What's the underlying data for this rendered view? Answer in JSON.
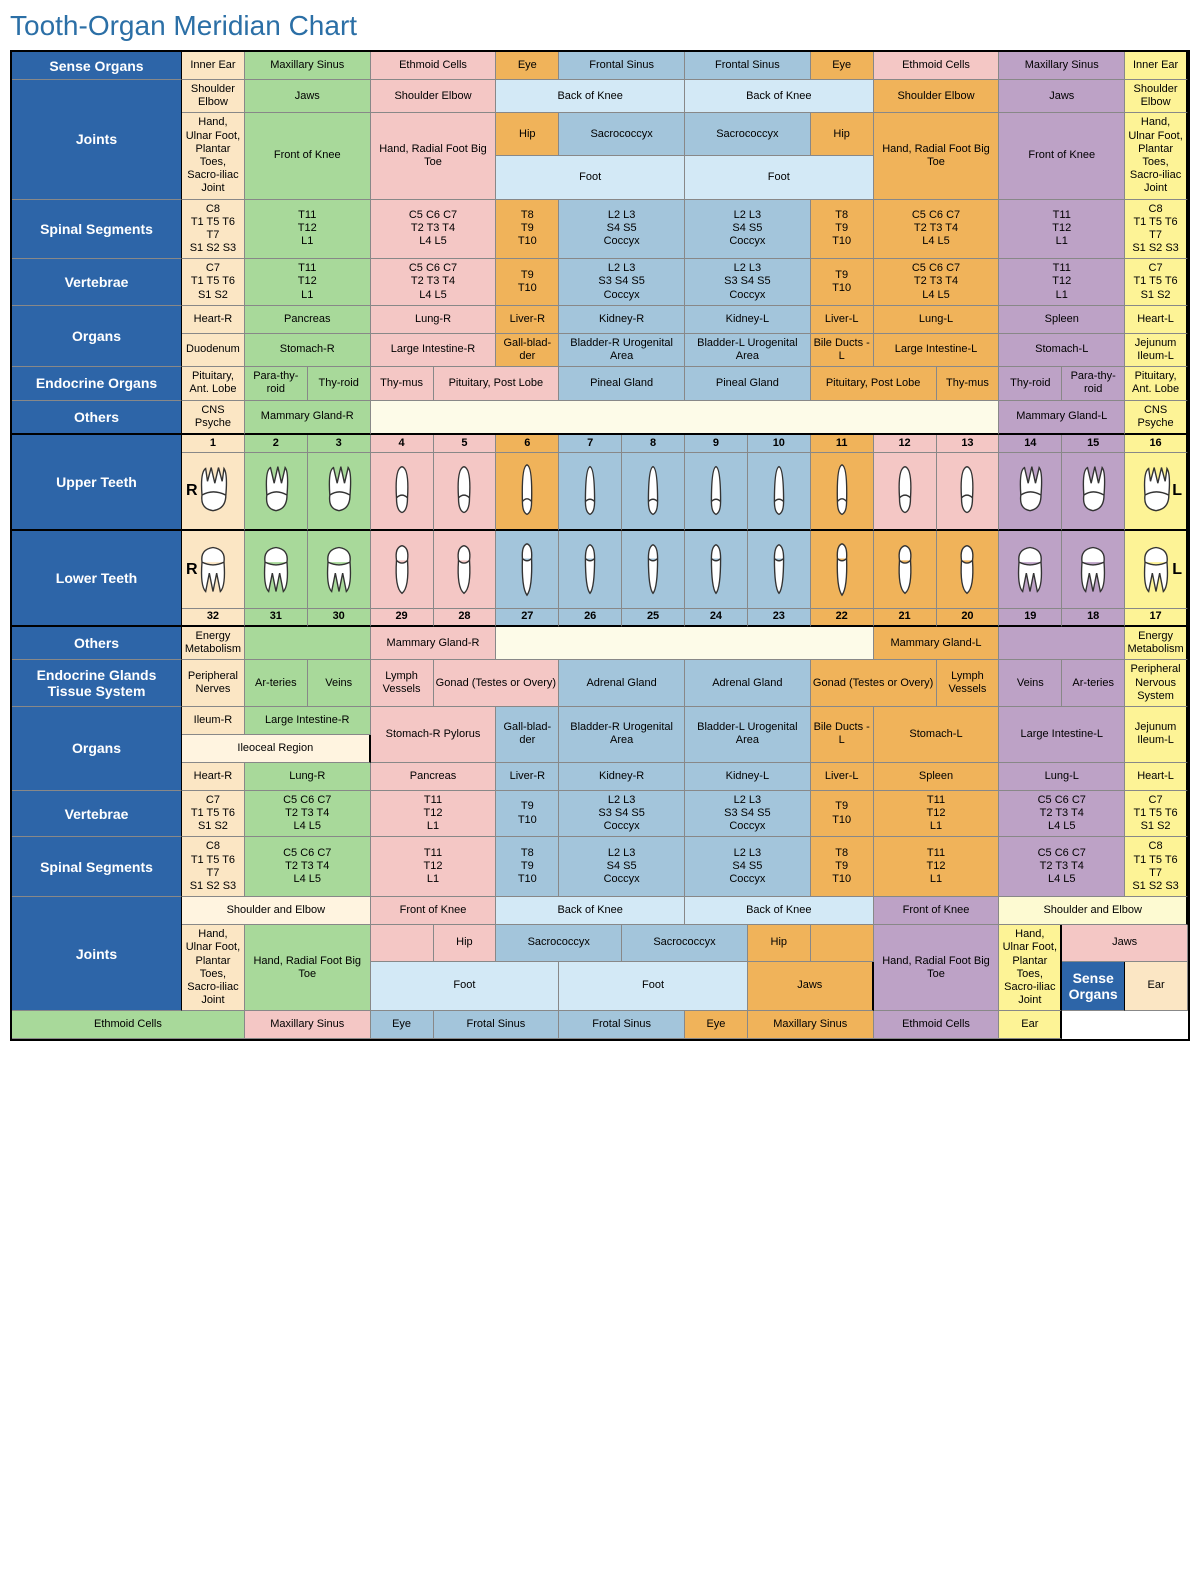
{
  "title": "Tooth-Organ Meridian Chart",
  "colors": {
    "header": "#2d65a8",
    "c1": "#fbe6c4",
    "c1b": "#fff4e0",
    "c2": "#a8d99a",
    "c3": "#f4c7c5",
    "c4": "#f0b35a",
    "c5": "#a3c5db",
    "c5b": "#d3e9f6",
    "c6": "#bda2c6",
    "c7": "#fdf396",
    "c7b": "#fdfad2",
    "blank": "#fdfbe8",
    "title_color": "#2b6fa6",
    "border": "#000000"
  },
  "side_r": "R",
  "side_l": "L",
  "upper_nums": [
    "1",
    "2",
    "3",
    "4",
    "5",
    "6",
    "7",
    "8",
    "9",
    "10",
    "11",
    "12",
    "13",
    "14",
    "15",
    "16"
  ],
  "lower_nums": [
    "32",
    "31",
    "30",
    "29",
    "28",
    "27",
    "26",
    "25",
    "24",
    "23",
    "22",
    "21",
    "20",
    "19",
    "18",
    "17"
  ],
  "col_colors": [
    "c1",
    "c2",
    "c2",
    "c3",
    "c3",
    "c4",
    "c5",
    "c5",
    "c5",
    "c5",
    "c4",
    "c3",
    "c3",
    "c6",
    "c6",
    "c7"
  ],
  "col_colors_lower": [
    "c1",
    "c2",
    "c2",
    "c3",
    "c3",
    "c5",
    "c5",
    "c5",
    "c5",
    "c5",
    "c4",
    "c4",
    "c4",
    "c6",
    "c6",
    "c7"
  ],
  "labels": {
    "sense": "Sense Organs",
    "joints": "Joints",
    "spinal": "Spinal Segments",
    "vert": "Vertebrae",
    "organs": "Organs",
    "endo": "Endocrine Organs",
    "others": "Others",
    "upper": "Upper Teeth",
    "lower": "Lower Teeth",
    "endo2": "Endocrine Glands Tissue System"
  },
  "upper": {
    "sense": [
      {
        "t": "Inner Ear",
        "c": "c1",
        "s": 1
      },
      {
        "t": "Maxillary Sinus",
        "c": "c2",
        "s": 2
      },
      {
        "t": "Ethmoid Cells",
        "c": "c3",
        "s": 2
      },
      {
        "t": "Eye",
        "c": "c4",
        "s": 1
      },
      {
        "t": "Frontal Sinus",
        "c": "c5",
        "s": 2
      },
      {
        "t": "Frontal Sinus",
        "c": "c5",
        "s": 2
      },
      {
        "t": "Eye",
        "c": "c4",
        "s": 1
      },
      {
        "t": "Ethmoid Cells",
        "c": "c3",
        "s": 2
      },
      {
        "t": "Maxillary Sinus",
        "c": "c6",
        "s": 2
      },
      {
        "t": "Inner Ear",
        "c": "c7",
        "s": 1
      }
    ],
    "joints1": [
      {
        "t": "Shoulder Elbow",
        "c": "c1",
        "s": 1
      },
      {
        "t": "Jaws",
        "c": "c2",
        "s": 2
      },
      {
        "t": "Shoulder Elbow",
        "c": "c3",
        "s": 2
      },
      {
        "t": "Back of Knee",
        "c": "c5b",
        "s": 3
      },
      {
        "t": "Back of Knee",
        "c": "c5b",
        "s": 3
      },
      {
        "t": "Shoulder Elbow",
        "c": "c4",
        "s": 2
      },
      {
        "t": "Jaws",
        "c": "c6",
        "s": 2
      },
      {
        "t": "Shoulder Elbow",
        "c": "c7",
        "s": 1
      }
    ],
    "joints1b": [
      {
        "t": "Hip",
        "c": "c4",
        "s": 1
      },
      {
        "t": "Sacrococcyx",
        "c": "c5",
        "s": 2
      },
      {
        "t": "Sacrococcyx",
        "c": "c5",
        "s": 2
      },
      {
        "t": "Hip",
        "c": "c4",
        "s": 1
      }
    ],
    "joints2": [
      {
        "t": "Hand, Ulnar Foot, Plantar Toes, Sacro-iliac Joint",
        "c": "c1",
        "s": 1
      },
      {
        "t": "Front of Knee",
        "c": "c2",
        "s": 2
      },
      {
        "t": "Hand, Radial Foot Big Toe",
        "c": "c3",
        "s": 2
      },
      {
        "t": "Foot",
        "c": "c5b",
        "s": 3
      },
      {
        "t": "Foot",
        "c": "c5b",
        "s": 3
      },
      {
        "t": "Hand, Radial Foot Big Toe",
        "c": "c4",
        "s": 2
      },
      {
        "t": "Front of Knee",
        "c": "c6",
        "s": 2
      },
      {
        "t": "Hand, Ulnar Foot, Plantar Toes, Sacro-iliac Joint",
        "c": "c7",
        "s": 1
      }
    ],
    "spinal": [
      {
        "t": "C8\nT1 T5 T6 T7\nS1 S2 S3",
        "c": "c1",
        "s": 1
      },
      {
        "t": "T11\nT12\nL1",
        "c": "c2",
        "s": 2
      },
      {
        "t": "C5 C6 C7\nT2 T3 T4\nL4 L5",
        "c": "c3",
        "s": 2
      },
      {
        "t": "T8\nT9\nT10",
        "c": "c4",
        "s": 1
      },
      {
        "t": "L2 L3\nS4 S5\nCoccyx",
        "c": "c5",
        "s": 2
      },
      {
        "t": "L2 L3\nS4 S5\nCoccyx",
        "c": "c5",
        "s": 2
      },
      {
        "t": "T8\nT9\nT10",
        "c": "c4",
        "s": 1
      },
      {
        "t": "C5 C6 C7\nT2 T3 T4\nL4 L5",
        "c": "c4",
        "s": 2
      },
      {
        "t": "T11\nT12\nL1",
        "c": "c6",
        "s": 2
      },
      {
        "t": "C8\nT1 T5 T6 T7\nS1 S2 S3",
        "c": "c7",
        "s": 1
      }
    ],
    "vert": [
      {
        "t": "C7\nT1 T5 T6\nS1 S2",
        "c": "c1",
        "s": 1
      },
      {
        "t": "T11\nT12\nL1",
        "c": "c2",
        "s": 2
      },
      {
        "t": "C5 C6 C7\nT2 T3 T4\nL4 L5",
        "c": "c3",
        "s": 2
      },
      {
        "t": "T9\nT10",
        "c": "c4",
        "s": 1
      },
      {
        "t": "L2 L3\nS3 S4 S5\nCoccyx",
        "c": "c5",
        "s": 2
      },
      {
        "t": "L2 L3\nS3 S4 S5\nCoccyx",
        "c": "c5",
        "s": 2
      },
      {
        "t": "T9\nT10",
        "c": "c4",
        "s": 1
      },
      {
        "t": "C5 C6 C7\nT2 T3 T4\nL4 L5",
        "c": "c4",
        "s": 2
      },
      {
        "t": "T11\nT12\nL1",
        "c": "c6",
        "s": 2
      },
      {
        "t": "C7\nT1 T5 T6\nS1 S2",
        "c": "c7",
        "s": 1
      }
    ],
    "organs1": [
      {
        "t": "Heart-R",
        "c": "c1",
        "s": 1
      },
      {
        "t": "Pancreas",
        "c": "c2",
        "s": 2
      },
      {
        "t": "Lung-R",
        "c": "c3",
        "s": 2
      },
      {
        "t": "Liver-R",
        "c": "c4",
        "s": 1
      },
      {
        "t": "Kidney-R",
        "c": "c5",
        "s": 2
      },
      {
        "t": "Kidney-L",
        "c": "c5",
        "s": 2
      },
      {
        "t": "Liver-L",
        "c": "c4",
        "s": 1
      },
      {
        "t": "Lung-L",
        "c": "c4",
        "s": 2
      },
      {
        "t": "Spleen",
        "c": "c6",
        "s": 2
      },
      {
        "t": "Heart-L",
        "c": "c7",
        "s": 1
      }
    ],
    "organs2": [
      {
        "t": "Duodenum",
        "c": "c1",
        "s": 1
      },
      {
        "t": "Stomach-R",
        "c": "c2",
        "s": 2
      },
      {
        "t": "Large Intestine-R",
        "c": "c3",
        "s": 2
      },
      {
        "t": "Gall-blad-der",
        "c": "c4",
        "s": 1
      },
      {
        "t": "Bladder-R Urogenital Area",
        "c": "c5",
        "s": 2
      },
      {
        "t": "Bladder-L Urogenital Area",
        "c": "c5",
        "s": 2
      },
      {
        "t": "Bile Ducts -L",
        "c": "c4",
        "s": 1
      },
      {
        "t": "Large Intestine-L",
        "c": "c4",
        "s": 2
      },
      {
        "t": "Stomach-L",
        "c": "c6",
        "s": 2
      },
      {
        "t": "Jejunum Ileum-L",
        "c": "c7",
        "s": 1
      }
    ],
    "endo": [
      {
        "t": "Pituitary, Ant. Lobe",
        "c": "c1",
        "s": 1
      },
      {
        "t": "Para-thy-roid",
        "c": "c2",
        "s": 1
      },
      {
        "t": "Thy-roid",
        "c": "c2",
        "s": 1
      },
      {
        "t": "Thy-mus",
        "c": "c3",
        "s": 1
      },
      {
        "t": "Pituitary, Post Lobe",
        "c": "c3",
        "s": 2
      },
      {
        "t": "Pineal Gland",
        "c": "c5",
        "s": 2
      },
      {
        "t": "Pineal Gland",
        "c": "c5",
        "s": 2
      },
      {
        "t": "Pituitary, Post Lobe",
        "c": "c4",
        "s": 2
      },
      {
        "t": "Thy-mus",
        "c": "c4",
        "s": 1
      },
      {
        "t": "Thy-roid",
        "c": "c6",
        "s": 1
      },
      {
        "t": "Para-thy-roid",
        "c": "c6",
        "s": 1
      },
      {
        "t": "Pituitary, Ant. Lobe",
        "c": "c7",
        "s": 1
      }
    ],
    "others": [
      {
        "t": "CNS Psyche",
        "c": "c1",
        "s": 1
      },
      {
        "t": "Mammary Gland-R",
        "c": "c2",
        "s": 2
      },
      {
        "t": "",
        "c": "blank",
        "s": 10
      },
      {
        "t": "Mammary Gland-L",
        "c": "c6",
        "s": 2
      },
      {
        "t": "CNS Psyche",
        "c": "c7",
        "s": 1
      }
    ]
  },
  "lower": {
    "others": [
      {
        "t": "Energy Metabolism",
        "c": "c1",
        "s": 1
      },
      {
        "t": "",
        "c": "c2",
        "s": 2
      },
      {
        "t": "Mammary Gland-R",
        "c": "c3",
        "s": 2
      },
      {
        "t": "",
        "c": "blank",
        "s": 6
      },
      {
        "t": "Mammary Gland-L",
        "c": "c4",
        "s": 2
      },
      {
        "t": "",
        "c": "c6",
        "s": 2
      },
      {
        "t": "Energy Metabolism",
        "c": "c7",
        "s": 1
      }
    ],
    "endo": [
      {
        "t": "Peripheral Nerves",
        "c": "c1",
        "s": 1
      },
      {
        "t": "Ar-teries",
        "c": "c2",
        "s": 1
      },
      {
        "t": "Veins",
        "c": "c2",
        "s": 1
      },
      {
        "t": "Lymph Vessels",
        "c": "c3",
        "s": 1
      },
      {
        "t": "Gonad (Testes or Overy)",
        "c": "c3",
        "s": 2
      },
      {
        "t": "Adrenal Gland",
        "c": "c5",
        "s": 2
      },
      {
        "t": "Adrenal Gland",
        "c": "c5",
        "s": 2
      },
      {
        "t": "Gonad (Testes or Overy)",
        "c": "c4",
        "s": 2
      },
      {
        "t": "Lymph Vessels",
        "c": "c4",
        "s": 1
      },
      {
        "t": "Veins",
        "c": "c6",
        "s": 1
      },
      {
        "t": "Ar-teries",
        "c": "c6",
        "s": 1
      },
      {
        "t": "Peripheral Nervous System",
        "c": "c7",
        "s": 1
      }
    ],
    "organs1a": [
      {
        "t": "Ileum-R",
        "c": "c1",
        "s": 1
      },
      {
        "t": "Large Intestine-R",
        "c": "c2",
        "s": 2
      },
      {
        "t": "Stomach-R Pylorus",
        "c": "c3",
        "s": 2,
        "rs": 2
      },
      {
        "t": "Gall-blad-der",
        "c": "c5",
        "s": 1,
        "rs": 2
      },
      {
        "t": "Bladder-R Urogenital Area",
        "c": "c5",
        "s": 2,
        "rs": 2
      },
      {
        "t": "Bladder-L Urogenital Area",
        "c": "c5",
        "s": 2,
        "rs": 2
      },
      {
        "t": "Bile Ducts -L",
        "c": "c4",
        "s": 1,
        "rs": 2
      },
      {
        "t": "Stomach-L",
        "c": "c4",
        "s": 2,
        "rs": 2
      },
      {
        "t": "Large Intestine-L",
        "c": "c6",
        "s": 2,
        "rs": 2
      },
      {
        "t": "Jejunum Ileum-L",
        "c": "c7",
        "s": 1,
        "rs": 2
      }
    ],
    "organs1b": [
      {
        "t": "Ileoceal Region",
        "c": "c1b",
        "s": 3
      }
    ],
    "organs2": [
      {
        "t": "Heart-R",
        "c": "c1",
        "s": 1
      },
      {
        "t": "Lung-R",
        "c": "c2",
        "s": 2
      },
      {
        "t": "Pancreas",
        "c": "c3",
        "s": 2
      },
      {
        "t": "Liver-R",
        "c": "c5",
        "s": 1
      },
      {
        "t": "Kidney-R",
        "c": "c5",
        "s": 2
      },
      {
        "t": "Kidney-L",
        "c": "c5",
        "s": 2
      },
      {
        "t": "Liver-L",
        "c": "c4",
        "s": 1
      },
      {
        "t": "Spleen",
        "c": "c4",
        "s": 2
      },
      {
        "t": "Lung-L",
        "c": "c6",
        "s": 2
      },
      {
        "t": "Heart-L",
        "c": "c7",
        "s": 1
      }
    ],
    "vert": [
      {
        "t": "C7\nT1 T5 T6\nS1 S2",
        "c": "c1",
        "s": 1
      },
      {
        "t": "C5 C6 C7\nT2 T3 T4\nL4 L5",
        "c": "c2",
        "s": 2
      },
      {
        "t": "T11\nT12\nL1",
        "c": "c3",
        "s": 2
      },
      {
        "t": "T9\nT10",
        "c": "c5",
        "s": 1
      },
      {
        "t": "L2 L3\nS3 S4 S5\nCoccyx",
        "c": "c5",
        "s": 2
      },
      {
        "t": "L2 L3\nS3 S4 S5\nCoccyx",
        "c": "c5",
        "s": 2
      },
      {
        "t": "T9\nT10",
        "c": "c4",
        "s": 1
      },
      {
        "t": "T11\nT12\nL1",
        "c": "c4",
        "s": 2
      },
      {
        "t": "C5 C6 C7\nT2 T3 T4\nL4 L5",
        "c": "c6",
        "s": 2
      },
      {
        "t": "C7\nT1 T5 T6\nS1 S2",
        "c": "c7",
        "s": 1
      }
    ],
    "spinal": [
      {
        "t": "C8\nT1 T5 T6 T7\nS1 S2 S3",
        "c": "c1",
        "s": 1
      },
      {
        "t": "C5 C6 C7\nT2 T3 T4\nL4 L5",
        "c": "c2",
        "s": 2
      },
      {
        "t": "T11\nT12\nL1",
        "c": "c3",
        "s": 2
      },
      {
        "t": "T8\nT9\nT10",
        "c": "c5",
        "s": 1
      },
      {
        "t": "L2 L3\nS4 S5\nCoccyx",
        "c": "c5",
        "s": 2
      },
      {
        "t": "L2 L3\nS4 S5\nCoccyx",
        "c": "c5",
        "s": 2
      },
      {
        "t": "T8\nT9\nT10",
        "c": "c4",
        "s": 1
      },
      {
        "t": "T11\nT12\nL1",
        "c": "c4",
        "s": 2
      },
      {
        "t": "C5 C6 C7\nT2 T3 T4\nL4 L5",
        "c": "c6",
        "s": 2
      },
      {
        "t": "C8\nT1 T5 T6 T7\nS1 S2 S3",
        "c": "c7",
        "s": 1
      }
    ],
    "joints1": [
      {
        "t": "Shoulder and Elbow",
        "c": "c1b",
        "s": 3
      },
      {
        "t": "Front of Knee",
        "c": "c3",
        "s": 2
      },
      {
        "t": "Back of Knee",
        "c": "c5b",
        "s": 3
      },
      {
        "t": "Back of Knee",
        "c": "c5b",
        "s": 3
      },
      {
        "t": "Front of Knee",
        "c": "c6",
        "s": 2
      },
      {
        "t": "Shoulder and Elbow",
        "c": "c7b",
        "s": 3
      }
    ],
    "joints2a": [
      {
        "t": "Hand, Ulnar Foot, Plantar Toes, Sacro-iliac Joint",
        "c": "c1",
        "s": 1,
        "rs": 2
      },
      {
        "t": "Hand, Radial Foot Big Toe",
        "c": "c2",
        "s": 2,
        "rs": 2
      },
      {
        "t": "",
        "c": "c3",
        "s": 1
      },
      {
        "t": "Hip",
        "c": "c3",
        "s": 1
      },
      {
        "t": "Sacrococcyx",
        "c": "c5",
        "s": 2
      },
      {
        "t": "Sacrococcyx",
        "c": "c5",
        "s": 2
      },
      {
        "t": "Hip",
        "c": "c4",
        "s": 1
      },
      {
        "t": "",
        "c": "c4",
        "s": 1
      },
      {
        "t": "Hand, Radial Foot Big Toe",
        "c": "c6",
        "s": 2,
        "rs": 2
      },
      {
        "t": "Hand, Ulnar Foot, Plantar Toes, Sacro-iliac Joint",
        "c": "c7",
        "s": 1,
        "rs": 2
      }
    ],
    "joints2b": [
      {
        "t": "Jaws",
        "c": "c3",
        "s": 2
      },
      {
        "t": "Foot",
        "c": "c5b",
        "s": 3
      },
      {
        "t": "Foot",
        "c": "c5b",
        "s": 3
      },
      {
        "t": "Jaws",
        "c": "c4",
        "s": 2
      }
    ],
    "sense": [
      {
        "t": "Ear",
        "c": "c1",
        "s": 1
      },
      {
        "t": "Ethmoid Cells",
        "c": "c2",
        "s": 2
      },
      {
        "t": "Maxillary Sinus",
        "c": "c3",
        "s": 2
      },
      {
        "t": "Eye",
        "c": "c5",
        "s": 1
      },
      {
        "t": "Frotal Sinus",
        "c": "c5",
        "s": 2
      },
      {
        "t": "Frotal Sinus",
        "c": "c5",
        "s": 2
      },
      {
        "t": "Eye",
        "c": "c4",
        "s": 1
      },
      {
        "t": "Maxillary Sinus",
        "c": "c4",
        "s": 2
      },
      {
        "t": "Ethmoid Cells",
        "c": "c6",
        "s": 2
      },
      {
        "t": "Ear",
        "c": "c7",
        "s": 1
      }
    ]
  },
  "tooth_types_upper": [
    "molar3",
    "molar2",
    "molar2",
    "premolar",
    "premolar",
    "canine",
    "incisor",
    "incisor",
    "incisor",
    "incisor",
    "canine",
    "premolar",
    "premolar",
    "molar2",
    "molar2",
    "molar3"
  ],
  "tooth_types_lower": [
    "molar_low",
    "molar_low",
    "molar_low",
    "premolar_low",
    "premolar_low",
    "canine_low",
    "incisor_low",
    "incisor_low",
    "incisor_low",
    "incisor_low",
    "canine_low",
    "premolar_low",
    "premolar_low",
    "molar_low",
    "molar_low",
    "molar_low"
  ]
}
